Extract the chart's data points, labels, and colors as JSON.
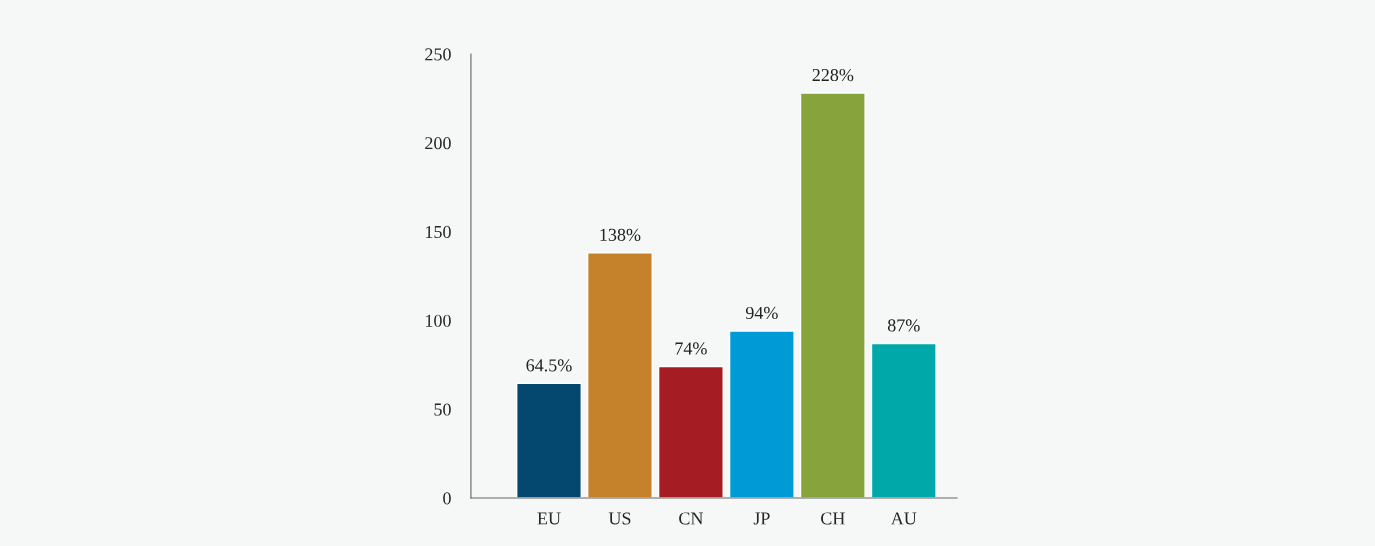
{
  "chart_data": {
    "type": "bar",
    "categories": [
      "EU",
      "US",
      "CN",
      "JP",
      "CH",
      "AU"
    ],
    "values": [
      64.5,
      138,
      74,
      94,
      228,
      87
    ],
    "colors": [
      "#05486f",
      "#c5822b",
      "#a51d23",
      "#009bd6",
      "#87a43c",
      "#00a8aa"
    ],
    "value_labels": [
      "64.5%",
      "138%",
      "74%",
      "94%",
      "228%",
      "87%"
    ],
    "ylim": [
      0,
      250
    ],
    "yticks": [
      0,
      50,
      100,
      150,
      200,
      250
    ],
    "grid": false
  }
}
